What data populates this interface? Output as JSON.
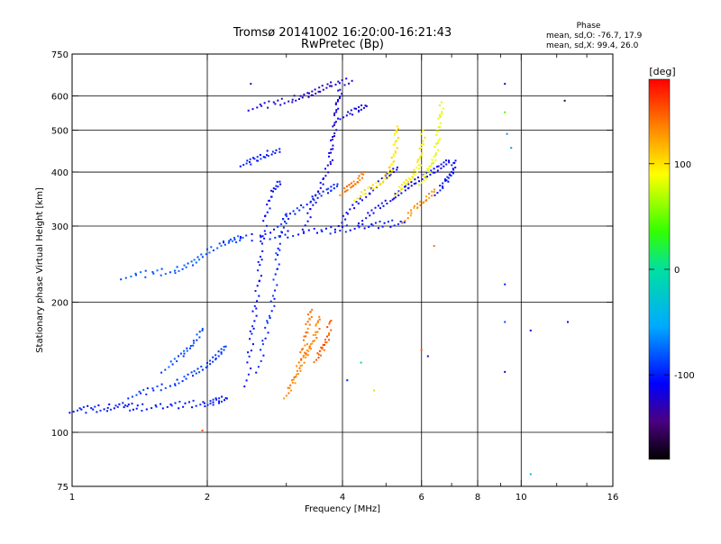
{
  "chart_data": {
    "type": "scatter",
    "title": "Tromsø 20141002 16:20:00-16:21:43",
    "subtitle": "RwPretec (Bp)",
    "xlabel": "Frequency [MHz]",
    "ylabel": "Stationary phase Virtual Height [km]",
    "x_scale": "log",
    "y_scale": "log",
    "xlim": [
      1,
      16
    ],
    "ylim": [
      75,
      750
    ],
    "x_ticks": [
      {
        "value": 1,
        "label": "1"
      },
      {
        "value": 2,
        "label": "2"
      },
      {
        "value": 4,
        "label": "4"
      },
      {
        "value": 6,
        "label": "6"
      },
      {
        "value": 8,
        "label": "8"
      },
      {
        "value": 10,
        "label": "10"
      },
      {
        "value": 16,
        "label": "16"
      }
    ],
    "x_minor_ticks": [
      3,
      5,
      7,
      9,
      12,
      14
    ],
    "y_ticks": [
      {
        "value": 75,
        "label": "75"
      },
      {
        "value": 100,
        "label": "100"
      },
      {
        "value": 200,
        "label": "200"
      },
      {
        "value": 300,
        "label": "300"
      },
      {
        "value": 400,
        "label": "400"
      },
      {
        "value": 500,
        "label": "500"
      },
      {
        "value": 600,
        "label": "600"
      },
      {
        "value": 750,
        "label": "750"
      }
    ],
    "grid": true,
    "stats": {
      "heading": "Phase",
      "line_o": "mean, sd,O: -76.7, 17.9",
      "line_x": "mean, sd,X:  99.4, 26.0"
    },
    "colorbar": {
      "label": "[deg]",
      "range": [
        -180,
        180
      ],
      "ticks": [
        {
          "value": 100,
          "label": "100"
        },
        {
          "value": 0,
          "label": "0"
        },
        {
          "value": -100,
          "label": "-100"
        }
      ]
    },
    "traces": [
      {
        "phase": -100,
        "points": [
          [
            1.0,
            113
          ],
          [
            1.1,
            113
          ],
          [
            1.2,
            114
          ],
          [
            1.3,
            115
          ],
          [
            1.4,
            114
          ],
          [
            1.6,
            115
          ],
          [
            1.8,
            116
          ],
          [
            2.0,
            117
          ],
          [
            2.1,
            118
          ],
          [
            2.2,
            120
          ]
        ]
      },
      {
        "phase": -90,
        "points": [
          [
            1.35,
            122
          ],
          [
            1.5,
            125
          ],
          [
            1.7,
            130
          ],
          [
            1.85,
            136
          ],
          [
            2.0,
            143
          ],
          [
            2.1,
            150
          ],
          [
            2.2,
            158
          ]
        ]
      },
      {
        "phase": -85,
        "points": [
          [
            1.6,
            140
          ],
          [
            1.75,
            150
          ],
          [
            1.85,
            160
          ],
          [
            1.95,
            172
          ]
        ]
      },
      {
        "phase": -80,
        "points": [
          [
            1.3,
            230
          ],
          [
            1.5,
            233
          ],
          [
            1.7,
            237
          ],
          [
            1.85,
            245
          ],
          [
            2.0,
            262
          ],
          [
            2.2,
            275
          ],
          [
            2.4,
            282
          ]
        ]
      },
      {
        "phase": -100,
        "points": [
          [
            2.2,
            280
          ],
          [
            2.6,
            283
          ],
          [
            3.0,
            287
          ],
          [
            3.5,
            291
          ],
          [
            4.0,
            295
          ],
          [
            4.5,
            300
          ],
          [
            5.0,
            303
          ],
          [
            5.5,
            306
          ]
        ]
      },
      {
        "phase": -105,
        "points": [
          [
            2.45,
            130
          ],
          [
            2.5,
            160
          ],
          [
            2.55,
            190
          ],
          [
            2.6,
            225
          ],
          [
            2.65,
            270
          ],
          [
            2.7,
            320
          ],
          [
            2.8,
            360
          ],
          [
            2.9,
            380
          ]
        ]
      },
      {
        "phase": -95,
        "points": [
          [
            2.6,
            140
          ],
          [
            2.7,
            170
          ],
          [
            2.8,
            200
          ],
          [
            2.85,
            240
          ],
          [
            2.9,
            280
          ],
          [
            3.0,
            320
          ]
        ]
      },
      {
        "phase": -95,
        "points": [
          [
            2.85,
            300
          ],
          [
            3.1,
            320
          ],
          [
            3.4,
            345
          ],
          [
            3.7,
            360
          ],
          [
            3.9,
            375
          ]
        ]
      },
      {
        "phase": -115,
        "points": [
          [
            3.3,
            300
          ],
          [
            3.45,
            340
          ],
          [
            3.6,
            380
          ],
          [
            3.75,
            420
          ],
          [
            3.8,
            470
          ],
          [
            3.85,
            520
          ],
          [
            3.9,
            570
          ],
          [
            3.95,
            620
          ]
        ]
      },
      {
        "phase": -110,
        "points": [
          [
            3.9,
            300
          ],
          [
            4.2,
            330
          ],
          [
            4.6,
            360
          ],
          [
            5.0,
            390
          ],
          [
            5.3,
            410
          ]
        ]
      },
      {
        "phase": -120,
        "points": [
          [
            2.5,
            565
          ],
          [
            2.8,
            575
          ],
          [
            3.1,
            590
          ],
          [
            3.35,
            600
          ],
          [
            3.55,
            620
          ],
          [
            3.8,
            640
          ],
          [
            4.2,
            650
          ]
        ]
      },
      {
        "phase": -115,
        "points": [
          [
            4.0,
            540
          ],
          [
            4.3,
            555
          ],
          [
            4.5,
            570
          ]
        ]
      },
      {
        "phase": -100,
        "points": [
          [
            2.4,
            420
          ],
          [
            2.55,
            425
          ],
          [
            2.7,
            440
          ],
          [
            2.9,
            445
          ]
        ]
      },
      {
        "phase": -110,
        "points": [
          [
            4.4,
            310
          ],
          [
            4.8,
            330
          ],
          [
            5.2,
            350
          ],
          [
            5.5,
            365
          ],
          [
            5.8,
            380
          ],
          [
            6.2,
            395
          ],
          [
            6.6,
            410
          ],
          [
            6.9,
            425
          ]
        ]
      },
      {
        "phase": -105,
        "points": [
          [
            6.5,
            360
          ],
          [
            6.8,
            380
          ],
          [
            7.0,
            400
          ],
          [
            7.1,
            420
          ]
        ]
      },
      {
        "phase": 135,
        "points": [
          [
            3.0,
            122
          ],
          [
            3.1,
            130
          ],
          [
            3.2,
            140
          ],
          [
            3.3,
            150
          ],
          [
            3.4,
            158
          ],
          [
            3.5,
            170
          ],
          [
            3.55,
            185
          ]
        ]
      },
      {
        "phase": 140,
        "points": [
          [
            3.2,
            145
          ],
          [
            3.3,
            160
          ],
          [
            3.35,
            180
          ],
          [
            3.4,
            190
          ]
        ]
      },
      {
        "phase": 150,
        "points": [
          [
            3.5,
            148
          ],
          [
            3.6,
            155
          ],
          [
            3.7,
            165
          ],
          [
            3.75,
            180
          ]
        ]
      },
      {
        "phase": 140,
        "points": [
          [
            4.0,
            360
          ],
          [
            4.15,
            370
          ],
          [
            4.3,
            380
          ],
          [
            4.45,
            395
          ]
        ]
      },
      {
        "phase": 100,
        "points": [
          [
            4.3,
            350
          ],
          [
            4.6,
            365
          ],
          [
            4.9,
            380
          ],
          [
            5.1,
            400
          ],
          [
            5.2,
            430
          ],
          [
            5.25,
            470
          ],
          [
            5.3,
            510
          ]
        ]
      },
      {
        "phase": 95,
        "points": [
          [
            5.3,
            360
          ],
          [
            5.5,
            375
          ],
          [
            5.7,
            390
          ],
          [
            5.9,
            410
          ],
          [
            6.0,
            450
          ],
          [
            6.05,
            500
          ]
        ]
      },
      {
        "phase": 85,
        "points": [
          [
            6.0,
            380
          ],
          [
            6.2,
            400
          ],
          [
            6.4,
            430
          ],
          [
            6.5,
            470
          ],
          [
            6.6,
            530
          ],
          [
            6.65,
            580
          ]
        ]
      },
      {
        "phase": 130,
        "points": [
          [
            5.5,
            310
          ],
          [
            5.8,
            330
          ],
          [
            6.1,
            345
          ],
          [
            6.4,
            360
          ]
        ]
      }
    ],
    "isolated_points": [
      {
        "x": 1.95,
        "y": 101,
        "phase": 150
      },
      {
        "x": 4.7,
        "y": 125,
        "phase": 70
      },
      {
        "x": 4.4,
        "y": 145,
        "phase": -10
      },
      {
        "x": 4.1,
        "y": 132,
        "phase": -100
      },
      {
        "x": 6.0,
        "y": 155,
        "phase": 150
      },
      {
        "x": 6.2,
        "y": 150,
        "phase": -120
      },
      {
        "x": 6.4,
        "y": 270,
        "phase": 140
      },
      {
        "x": 9.2,
        "y": 138,
        "phase": -120
      },
      {
        "x": 9.2,
        "y": 180,
        "phase": -85
      },
      {
        "x": 9.2,
        "y": 220,
        "phase": -100
      },
      {
        "x": 10.5,
        "y": 172,
        "phase": -120
      },
      {
        "x": 12.7,
        "y": 180,
        "phase": -110
      },
      {
        "x": 10.5,
        "y": 80,
        "phase": -40
      },
      {
        "x": 9.2,
        "y": 550,
        "phase": 40
      },
      {
        "x": 9.3,
        "y": 490,
        "phase": -60
      },
      {
        "x": 9.5,
        "y": 455,
        "phase": -60
      },
      {
        "x": 9.2,
        "y": 640,
        "phase": -120
      },
      {
        "x": 12.5,
        "y": 585,
        "phase": -160
      },
      {
        "x": 2.5,
        "y": 640,
        "phase": -130
      }
    ]
  }
}
